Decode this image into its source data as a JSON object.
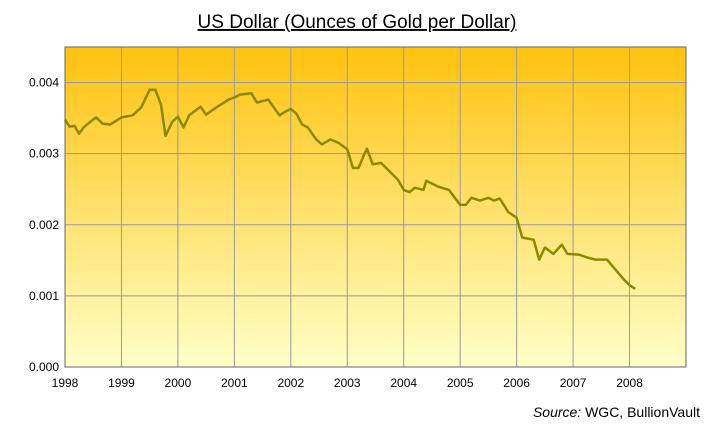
{
  "chart_data": {
    "type": "line",
    "title": "US Dollar (Ounces of Gold per Dollar)",
    "source": {
      "label": "Source:",
      "text": "WGC, BullionVault"
    },
    "x": [
      1998.0,
      1998.08,
      1998.17,
      1998.25,
      1998.33,
      1998.45,
      1998.55,
      1998.67,
      1998.8,
      1999.0,
      1999.2,
      1999.35,
      1999.5,
      1999.6,
      1999.7,
      1999.78,
      1999.9,
      2000.0,
      2000.1,
      2000.2,
      2000.4,
      2000.5,
      2000.7,
      2000.9,
      2001.0,
      2001.1,
      2001.3,
      2001.4,
      2001.6,
      2001.8,
      2001.9,
      2002.0,
      2002.1,
      2002.2,
      2002.3,
      2002.45,
      2002.55,
      2002.7,
      2002.85,
      2003.0,
      2003.1,
      2003.2,
      2003.3,
      2003.35,
      2003.45,
      2003.6,
      2003.75,
      2003.9,
      2004.0,
      2004.1,
      2004.2,
      2004.35,
      2004.4,
      2004.6,
      2004.8,
      2005.0,
      2005.1,
      2005.2,
      2005.35,
      2005.5,
      2005.6,
      2005.7,
      2005.85,
      2006.0,
      2006.1,
      2006.3,
      2006.4,
      2006.5,
      2006.65,
      2006.8,
      2006.9,
      2007.1,
      2007.25,
      2007.4,
      2007.6,
      2007.75,
      2007.9,
      2008.0,
      2008.1
    ],
    "series": [
      {
        "name": "US Dollar",
        "color": "#8a8a00",
        "values": [
          0.00348,
          0.00338,
          0.00339,
          0.00328,
          0.00337,
          0.00345,
          0.00351,
          0.00342,
          0.00341,
          0.00351,
          0.00354,
          0.00365,
          0.0039,
          0.0039,
          0.00369,
          0.00325,
          0.00345,
          0.00352,
          0.00337,
          0.00354,
          0.00366,
          0.00355,
          0.00366,
          0.00376,
          0.00379,
          0.00383,
          0.00385,
          0.00372,
          0.00376,
          0.00354,
          0.00359,
          0.00363,
          0.00356,
          0.00341,
          0.00337,
          0.0032,
          0.00313,
          0.0032,
          0.00315,
          0.00306,
          0.0028,
          0.0028,
          0.00299,
          0.00307,
          0.00285,
          0.00287,
          0.00275,
          0.00263,
          0.00249,
          0.00246,
          0.00252,
          0.00249,
          0.00262,
          0.00254,
          0.00249,
          0.00228,
          0.00228,
          0.00238,
          0.00234,
          0.00238,
          0.00234,
          0.00237,
          0.00218,
          0.0021,
          0.00182,
          0.00179,
          0.00151,
          0.00168,
          0.00159,
          0.00172,
          0.00159,
          0.00158,
          0.00154,
          0.00151,
          0.00151,
          0.00137,
          0.00123,
          0.00115,
          0.0011
        ]
      }
    ],
    "xlim": [
      1998,
      2009
    ],
    "xticks": [
      1998,
      1999,
      2000,
      2001,
      2002,
      2003,
      2004,
      2005,
      2006,
      2007,
      2008
    ],
    "ylim": [
      0,
      0.0045
    ],
    "yticks": [
      {
        "value": 0,
        "label": "0.000"
      },
      {
        "value": 0.001,
        "label": "0.001"
      },
      {
        "value": 0.002,
        "label": "0.002"
      },
      {
        "value": 0.003,
        "label": "0.003"
      },
      {
        "value": 0.004,
        "label": "0.004"
      }
    ],
    "grid": true
  }
}
